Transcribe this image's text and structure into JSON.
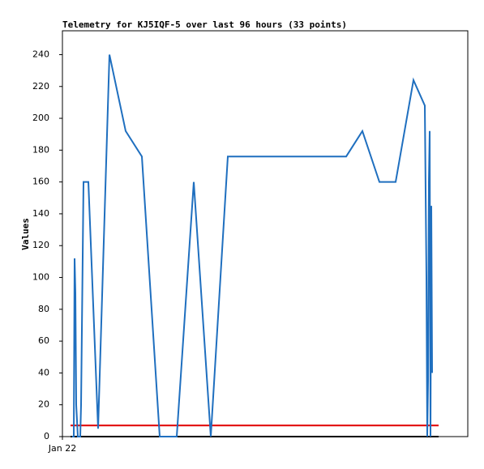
{
  "chart_data": {
    "type": "line",
    "title": "Telemetry for KJ5IQF-5 over last 96 hours (33 points)",
    "y_label": "Values",
    "x": [
      2.4,
      2.8,
      3.0,
      3.2,
      3.4,
      3.8,
      4.4,
      4.6,
      5.2,
      6.4,
      8.8,
      11.6,
      15.6,
      19.6,
      24,
      28.2,
      32.4,
      36.6,
      40.8,
      70,
      74,
      78.2,
      82.2,
      86.6,
      89.4,
      89.8,
      90,
      90.2,
      90.4,
      90.6,
      90.8,
      91,
      91.2
    ],
    "values": [
      0,
      0,
      112,
      90,
      20,
      0,
      0,
      20,
      160,
      160,
      5,
      240,
      192,
      176,
      0,
      0,
      160,
      0,
      176,
      176,
      192,
      160,
      160,
      224,
      208,
      100,
      0,
      35,
      160,
      192,
      0,
      145,
      40
    ],
    "color": "#1f6fbf",
    "reference_lines": [
      {
        "value": 7,
        "color": "#e00000"
      },
      {
        "value": 0,
        "color": "#000000"
      }
    ],
    "reference_x": [
      2,
      92.8
    ],
    "xlim": [
      0,
      100
    ],
    "xticks": [
      {
        "value": 0,
        "label": "Jan 22"
      }
    ],
    "ylim": [
      0,
      255
    ],
    "yticks": [
      0,
      20,
      40,
      60,
      80,
      100,
      120,
      140,
      160,
      180,
      200,
      220,
      240
    ]
  }
}
